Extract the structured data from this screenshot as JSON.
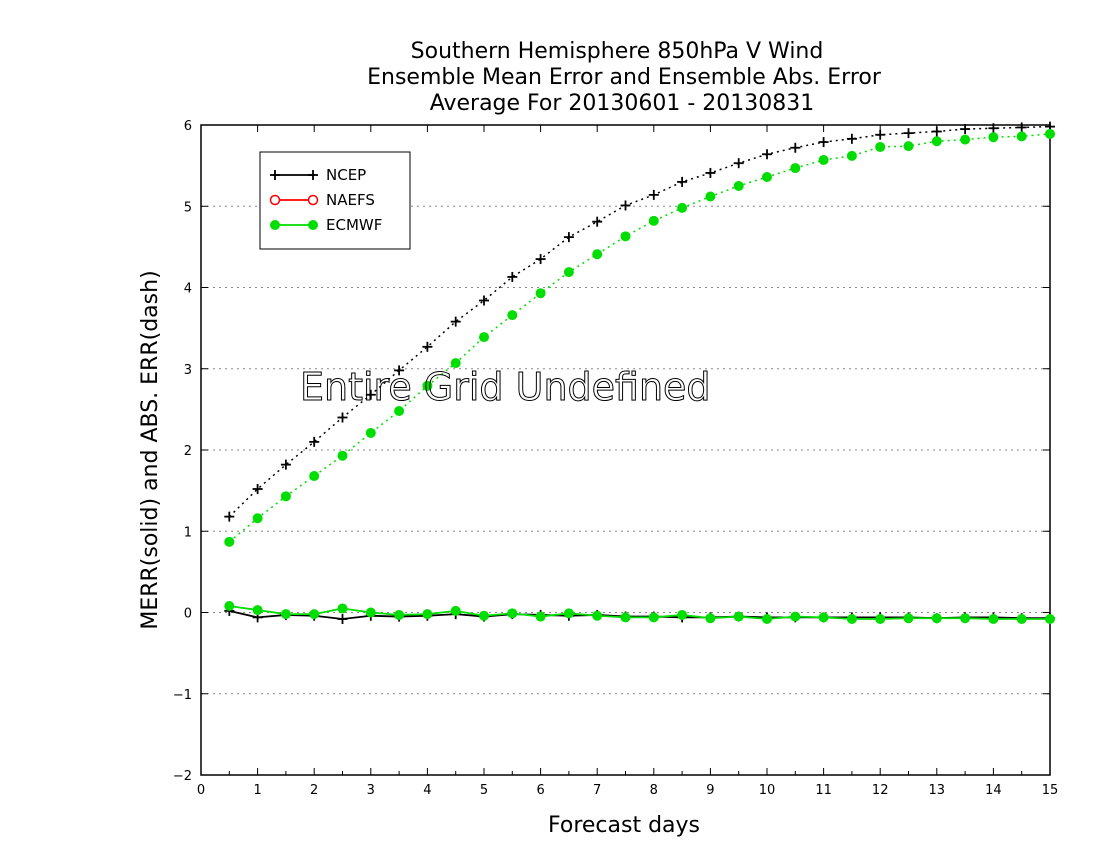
{
  "chart_data": {
    "type": "line",
    "title": [
      "Southern Hemisphere 850hPa V Wind",
      "Ensemble Mean Error and Ensemble Abs. Error",
      "Average For 20130601 - 20130831"
    ],
    "xlabel": "Forecast days",
    "ylabel": "MERR(solid) and ABS. ERR(dash)",
    "xlim": [
      0,
      15
    ],
    "ylim": [
      -2,
      6
    ],
    "xticks": [
      "0",
      "1",
      "2",
      "3",
      "4",
      "5",
      "6",
      "7",
      "8",
      "9",
      "10",
      "11",
      "12",
      "13",
      "14",
      "15"
    ],
    "yticks": [
      "−2",
      "−1",
      "0",
      "1",
      "2",
      "3",
      "4",
      "5",
      "6"
    ],
    "grid": "horizontal dotted",
    "legend_position": "top-left",
    "annotation": "Entire Grid Undefined",
    "x": [
      0.5,
      1,
      1.5,
      2,
      2.5,
      3,
      3.5,
      4,
      4.5,
      5,
      5.5,
      6,
      6.5,
      7,
      7.5,
      8,
      8.5,
      9,
      9.5,
      10,
      10.5,
      11,
      11.5,
      12,
      12.5,
      13,
      13.5,
      14,
      14.5,
      15
    ],
    "series": [
      {
        "name": "NCEP",
        "color": "#000000",
        "marker": "plus",
        "abs_error": [
          1.18,
          1.52,
          1.82,
          2.1,
          2.4,
          2.68,
          2.98,
          3.27,
          3.58,
          3.84,
          4.13,
          4.35,
          4.62,
          4.81,
          5.01,
          5.14,
          5.3,
          5.41,
          5.53,
          5.64,
          5.72,
          5.79,
          5.83,
          5.88,
          5.9,
          5.92,
          5.95,
          5.96,
          5.97,
          5.98
        ],
        "mean_error": [
          0.02,
          -0.06,
          -0.03,
          -0.04,
          -0.08,
          -0.04,
          -0.05,
          -0.04,
          -0.02,
          -0.05,
          -0.02,
          -0.03,
          -0.04,
          -0.03,
          -0.05,
          -0.05,
          -0.06,
          -0.06,
          -0.05,
          -0.06,
          -0.06,
          -0.06,
          -0.06,
          -0.06,
          -0.06,
          -0.07,
          -0.06,
          -0.06,
          -0.07,
          -0.07
        ]
      },
      {
        "name": "NAEFS",
        "color": "#ff0000",
        "marker": "open-circle",
        "abs_error": [],
        "mean_error": []
      },
      {
        "name": "ECMWF",
        "color": "#00dd00",
        "marker": "filled-circle",
        "abs_error": [
          0.87,
          1.16,
          1.43,
          1.68,
          1.93,
          2.21,
          2.48,
          2.79,
          3.07,
          3.39,
          3.66,
          3.93,
          4.19,
          4.41,
          4.63,
          4.82,
          4.98,
          5.12,
          5.25,
          5.36,
          5.47,
          5.57,
          5.62,
          5.73,
          5.74,
          5.8,
          5.82,
          5.85,
          5.86,
          5.89
        ],
        "mean_error": [
          0.08,
          0.03,
          -0.02,
          -0.02,
          0.05,
          0.0,
          -0.03,
          -0.02,
          0.02,
          -0.04,
          -0.01,
          -0.05,
          -0.01,
          -0.04,
          -0.06,
          -0.06,
          -0.03,
          -0.07,
          -0.05,
          -0.08,
          -0.05,
          -0.06,
          -0.08,
          -0.08,
          -0.07,
          -0.07,
          -0.07,
          -0.08,
          -0.08,
          -0.08
        ]
      }
    ]
  }
}
